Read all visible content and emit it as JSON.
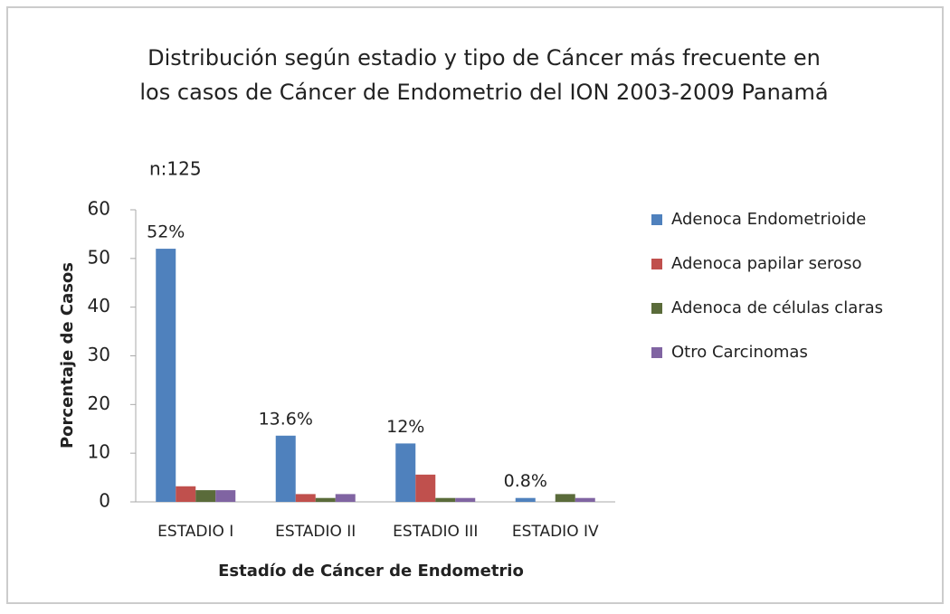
{
  "chart_data": {
    "type": "bar",
    "title": [
      "Distribución según  estadio y tipo de Cáncer  más frecuente en",
      "los casos de Cáncer de Endometrio del ION 2003-2009 Panamá"
    ],
    "annotation": "n:125",
    "x_label": "Estadío de Cáncer de Endometrio",
    "y_label": "Porcentaje de Casos",
    "categories": [
      "ESTADIO I",
      "ESTADIO II",
      "ESTADIO III",
      "ESTADIO IV"
    ],
    "series": [
      {
        "name": "Adenoca Endometrioide",
        "color": "#4f81bd",
        "values": [
          52,
          13.6,
          12,
          0.8
        ],
        "value_labels": [
          "52%",
          "13.6%",
          "12%",
          "0.8%"
        ]
      },
      {
        "name": "Adenoca papilar seroso",
        "color": "#c0504d",
        "values": [
          3.2,
          1.6,
          5.6,
          0
        ]
      },
      {
        "name": "Adenoca de células claras",
        "color": "#5a6b3a",
        "values": [
          2.4,
          0.8,
          0.8,
          1.6
        ]
      },
      {
        "name": "Otro Carcinomas",
        "color": "#8064a2",
        "values": [
          2.4,
          1.6,
          0.8,
          0.8
        ]
      }
    ],
    "ylim": [
      0,
      60
    ],
    "yticks": [
      0,
      10,
      20,
      30,
      40,
      50,
      60
    ],
    "legend": "right"
  }
}
